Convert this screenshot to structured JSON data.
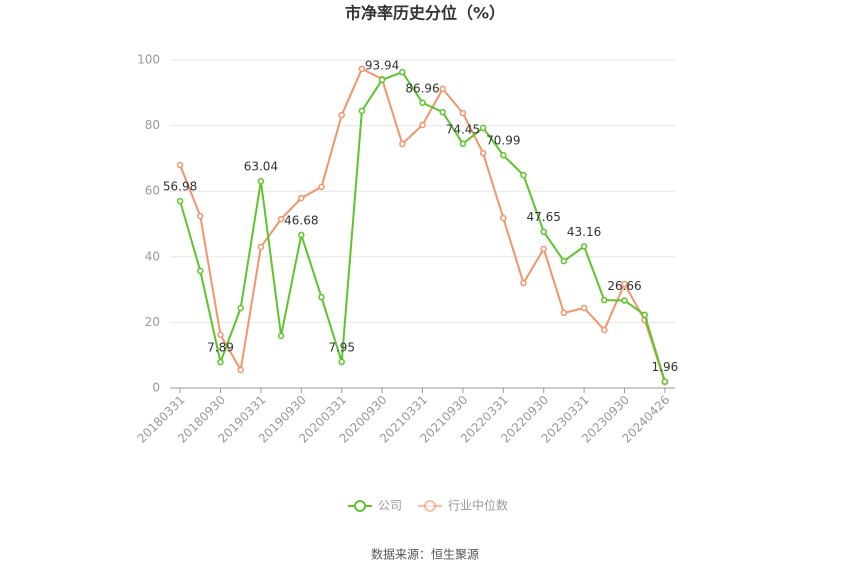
{
  "chart_data": {
    "type": "line",
    "title": "市净率历史分位（%）",
    "source": "数据来源：恒生聚源",
    "categories": [
      "20180331",
      null,
      "20180930",
      null,
      "20190331",
      null,
      "20190930",
      null,
      "20200331",
      null,
      "20200930",
      null,
      "20210331",
      null,
      "20210930",
      null,
      "20220331",
      null,
      "20220930",
      null,
      "20230331",
      null,
      "20230930",
      null,
      "20240426"
    ],
    "series": [
      {
        "name": "公司",
        "color": "#5dc52b",
        "values": [
          56.98,
          35.7,
          7.89,
          24.4,
          63.04,
          15.9,
          46.68,
          27.7,
          7.95,
          84.5,
          93.94,
          96.3,
          86.96,
          84.1,
          74.45,
          79.3,
          70.99,
          64.9,
          47.65,
          38.7,
          43.16,
          26.8,
          26.66,
          22.3,
          1.96
        ],
        "value_labels": [
          "56.98",
          null,
          "7.89",
          null,
          "63.04",
          null,
          "46.68",
          null,
          "7.95",
          null,
          "93.94",
          null,
          "86.96",
          null,
          "74.45",
          null,
          "70.99",
          null,
          "47.65",
          null,
          "43.16",
          null,
          "26.66",
          null,
          "1.96"
        ]
      },
      {
        "name": "行业中位数",
        "color": "#f5946a",
        "values": [
          68.0,
          52.4,
          16.2,
          5.5,
          43.0,
          51.5,
          57.9,
          61.3,
          83.2,
          97.3,
          94.2,
          74.4,
          80.2,
          91.2,
          83.8,
          71.6,
          51.8,
          32.0,
          42.4,
          22.9,
          24.4,
          17.7,
          31.7,
          20.7,
          1.8
        ]
      }
    ],
    "ylim": [
      0,
      100
    ],
    "yticks": [
      0,
      20,
      40,
      60,
      80,
      100
    ],
    "grid": true
  }
}
